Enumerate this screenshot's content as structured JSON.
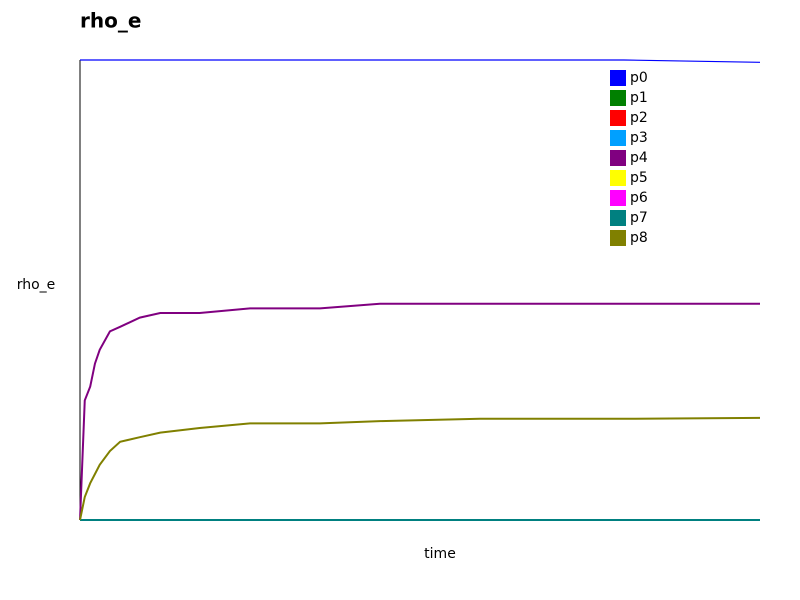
{
  "chart_data": {
    "type": "line",
    "title": "rho_e",
    "x_label": "time",
    "y_label": "rho_e",
    "x": [
      0,
      0.7,
      1.5,
      2.2,
      2.9,
      4.4,
      5.9,
      8.8,
      11.8,
      17.6,
      25,
      35.3,
      44.1,
      58.8,
      80,
      100
    ],
    "xlim": [
      0,
      100
    ],
    "ylim": [
      0,
      1
    ],
    "series": [
      {
        "name": "p0",
        "color": "#0000ff",
        "values": [
          1,
          1,
          1,
          1,
          1,
          1,
          1,
          1,
          1,
          1,
          1,
          1,
          1,
          1,
          1,
          0.995
        ]
      },
      {
        "name": "p1",
        "color": "#008000",
        "values": [
          0,
          0,
          0,
          0,
          0,
          0,
          0,
          0,
          0,
          0,
          0,
          0,
          0,
          0,
          0,
          0
        ]
      },
      {
        "name": "p2",
        "color": "#ff0000",
        "values": [
          0,
          0,
          0,
          0,
          0,
          0,
          0,
          0,
          0,
          0,
          0,
          0,
          0,
          0,
          0,
          0
        ]
      },
      {
        "name": "p3",
        "color": "#00a0ff",
        "values": [
          0,
          0,
          0,
          0,
          0,
          0,
          0,
          0,
          0,
          0,
          0,
          0,
          0,
          0,
          0,
          0
        ]
      },
      {
        "name": "p4",
        "color": "#800080",
        "values": [
          0,
          0.26,
          0.29,
          0.34,
          0.37,
          0.41,
          0.42,
          0.44,
          0.45,
          0.45,
          0.46,
          0.46,
          0.47,
          0.47,
          0.47,
          0.47
        ]
      },
      {
        "name": "p5",
        "color": "#ffff00",
        "values": [
          0,
          0,
          0,
          0,
          0,
          0,
          0,
          0,
          0,
          0,
          0,
          0,
          0,
          0,
          0,
          0
        ]
      },
      {
        "name": "p6",
        "color": "#ff00ff",
        "values": [
          0,
          0,
          0,
          0,
          0,
          0,
          0,
          0,
          0,
          0,
          0,
          0,
          0,
          0,
          0,
          0
        ]
      },
      {
        "name": "p7",
        "color": "#008080",
        "values": [
          0,
          0,
          0,
          0,
          0,
          0,
          0,
          0,
          0,
          0,
          0,
          0,
          0,
          0,
          0,
          0
        ]
      },
      {
        "name": "p8",
        "color": "#808000",
        "values": [
          0,
          0.05,
          0.08,
          0.1,
          0.12,
          0.15,
          0.17,
          0.18,
          0.19,
          0.2,
          0.21,
          0.21,
          0.215,
          0.22,
          0.22,
          0.222
        ]
      }
    ]
  }
}
